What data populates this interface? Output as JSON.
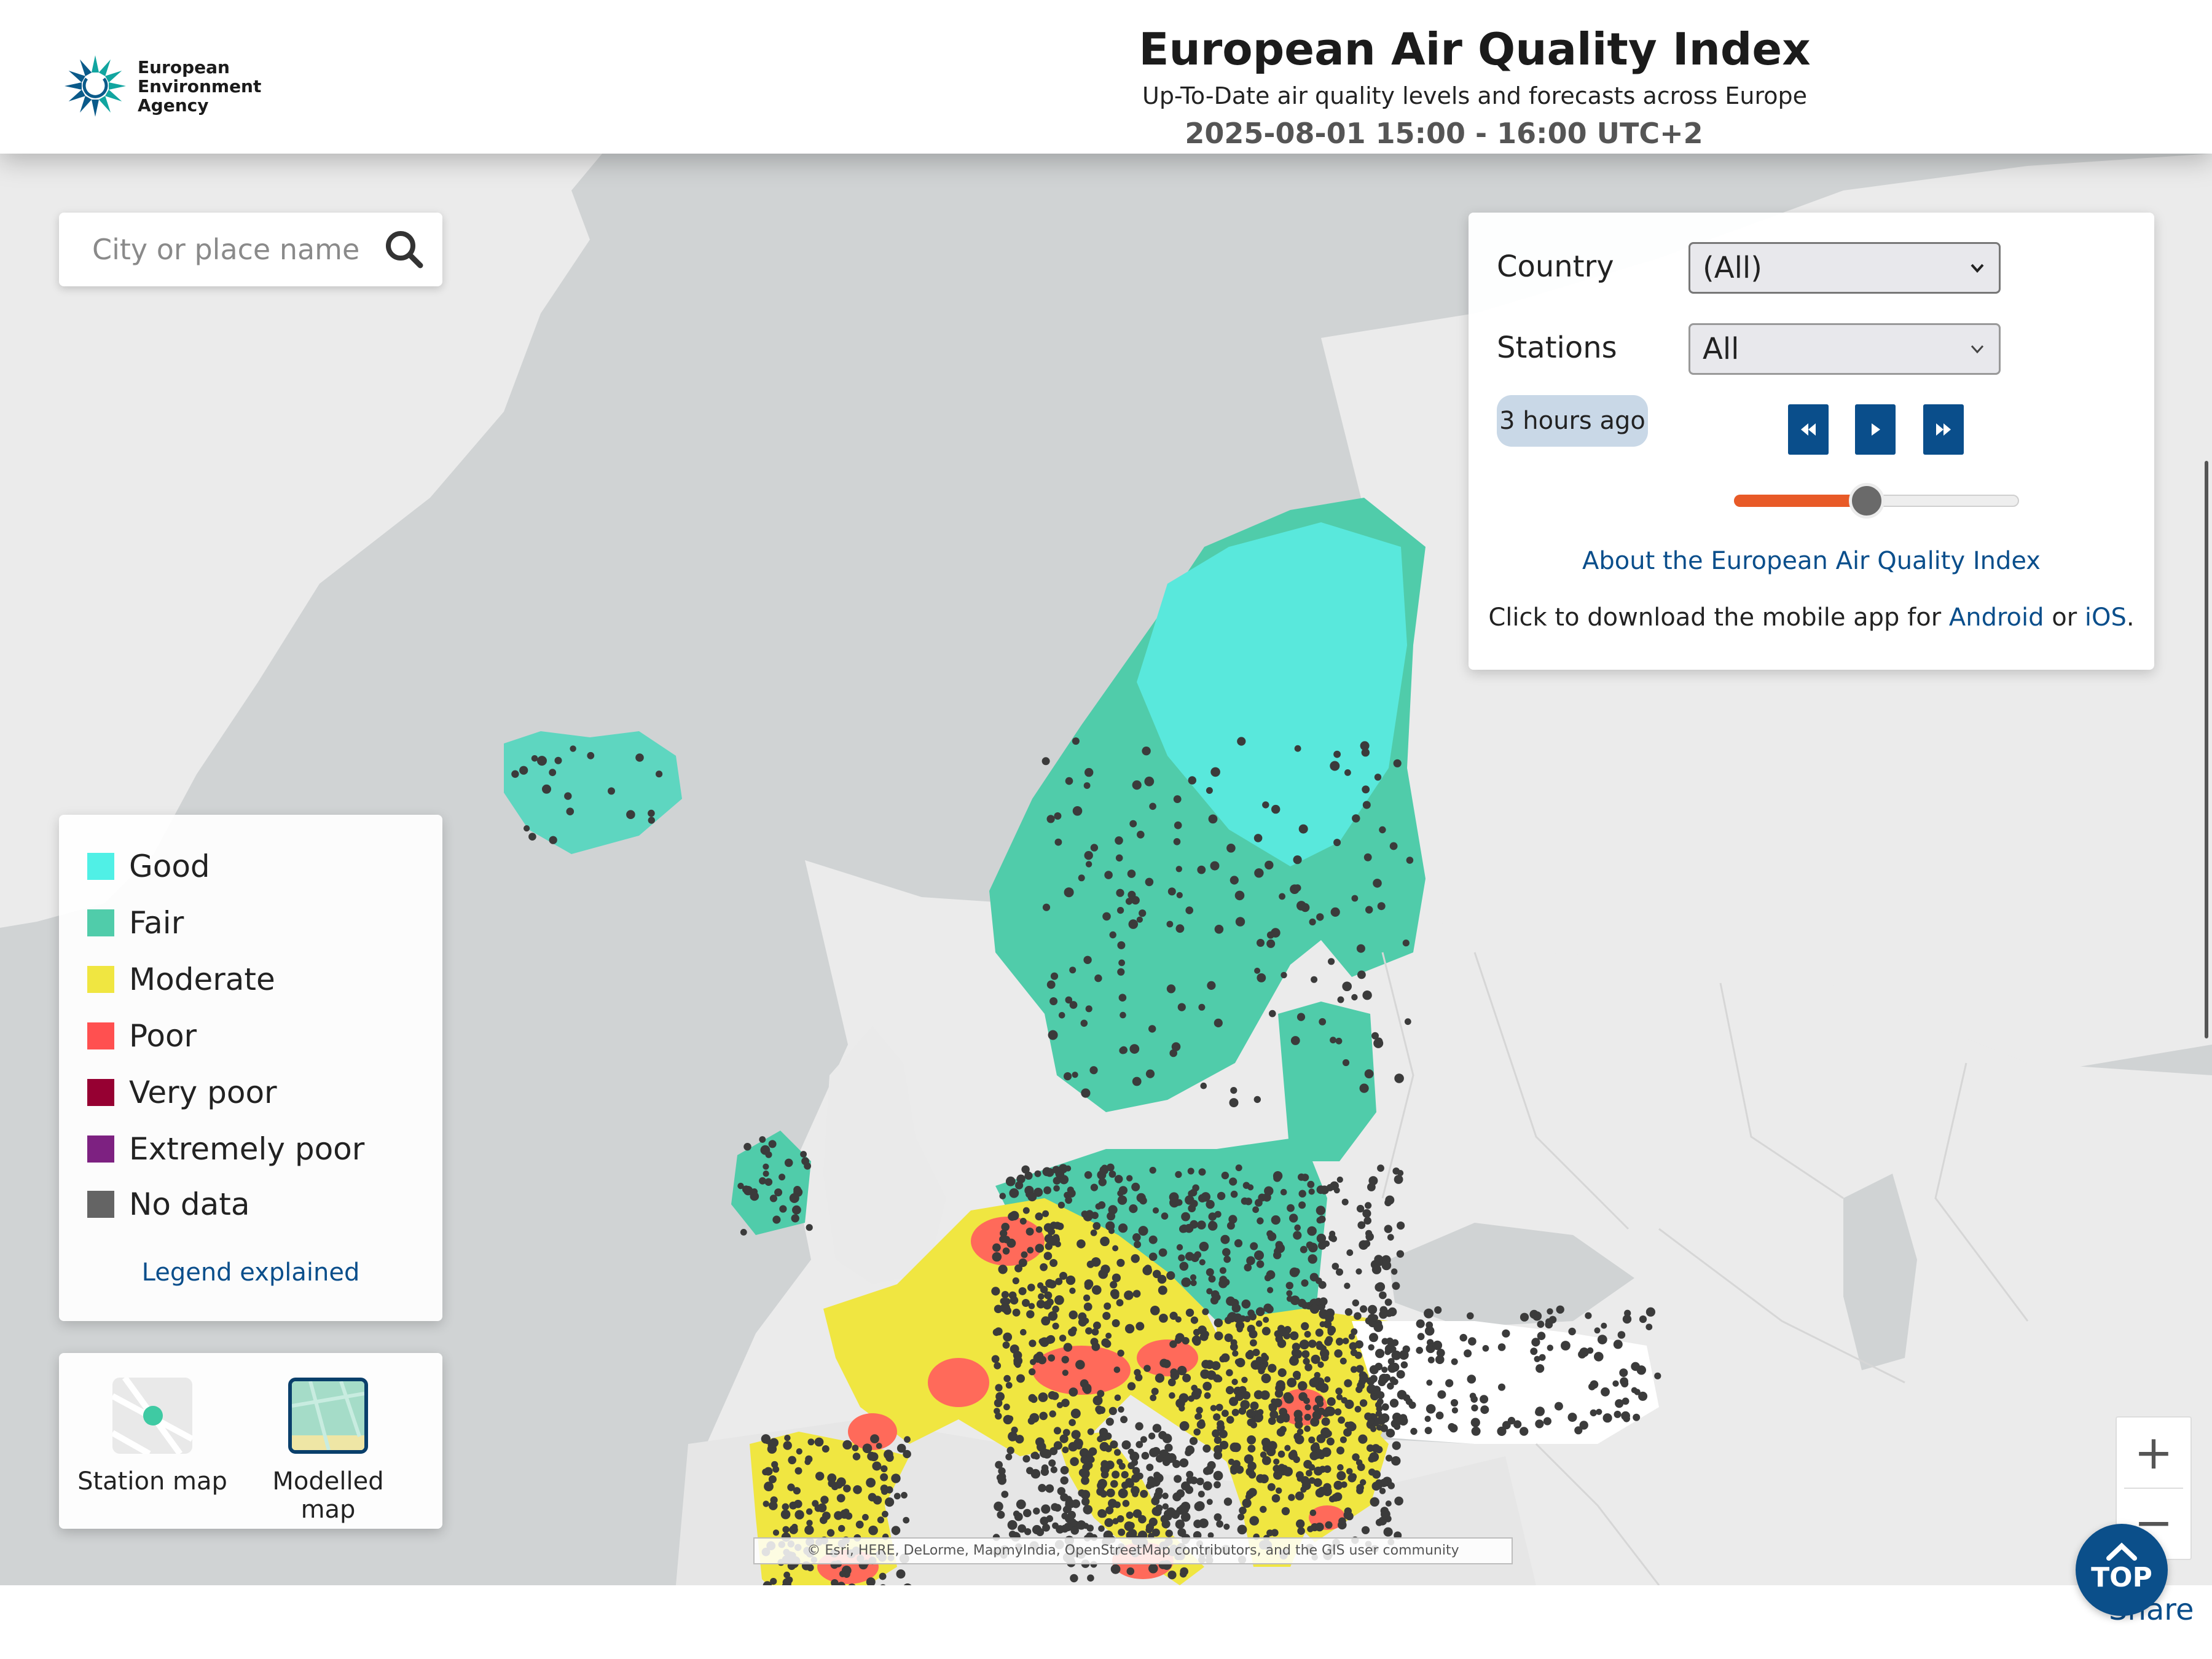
{
  "header": {
    "logo_lines": [
      "European",
      "Environment",
      "Agency"
    ],
    "title": "European Air Quality Index",
    "subtitle": "Up-To-Date air quality levels and forecasts across Europe",
    "datetime": "2025-08-01 15:00 - 16:00 UTC+2"
  },
  "search": {
    "placeholder": "City or place name",
    "icon": "search-icon"
  },
  "controls": {
    "country_label": "Country",
    "country_value": "(All)",
    "stations_label": "Stations",
    "stations_value": "All",
    "time_ago": "3 hours ago",
    "buttons": [
      "rewind-icon",
      "play-icon",
      "fast-forward-icon"
    ],
    "slider_fraction": 0.47,
    "about_link": "About the European Air Quality Index",
    "app_prefix": "Click to download the mobile app for ",
    "app_android": "Android",
    "app_or": " or ",
    "app_ios": "iOS",
    "app_suffix": "."
  },
  "legend": {
    "items": [
      {
        "label": "Good",
        "color": "#50f0e6"
      },
      {
        "label": "Fair",
        "color": "#50ccaa"
      },
      {
        "label": "Moderate",
        "color": "#f0e641"
      },
      {
        "label": "Poor",
        "color": "#ff5050"
      },
      {
        "label": "Very poor",
        "color": "#960032"
      },
      {
        "label": "Extremely poor",
        "color": "#7d2181"
      },
      {
        "label": "No data",
        "color": "#646464"
      }
    ],
    "link": "Legend explained"
  },
  "map_type": {
    "station_label": "Station map",
    "modelled_label": "Modelled map",
    "selected": "Modelled map"
  },
  "zoom": {
    "in": "+",
    "out": "−"
  },
  "attribution": "© Esri, HERE, DeLorme, MapmyIndia, OpenStreetMap contributors, and the GIS user community",
  "footer": {
    "share": "Share",
    "top": "TOP"
  },
  "colors": {
    "accent": "#0a4e8b",
    "slider_fill": "#e85a27",
    "sea": "#d0d3d4",
    "land": "#eaeaea"
  }
}
